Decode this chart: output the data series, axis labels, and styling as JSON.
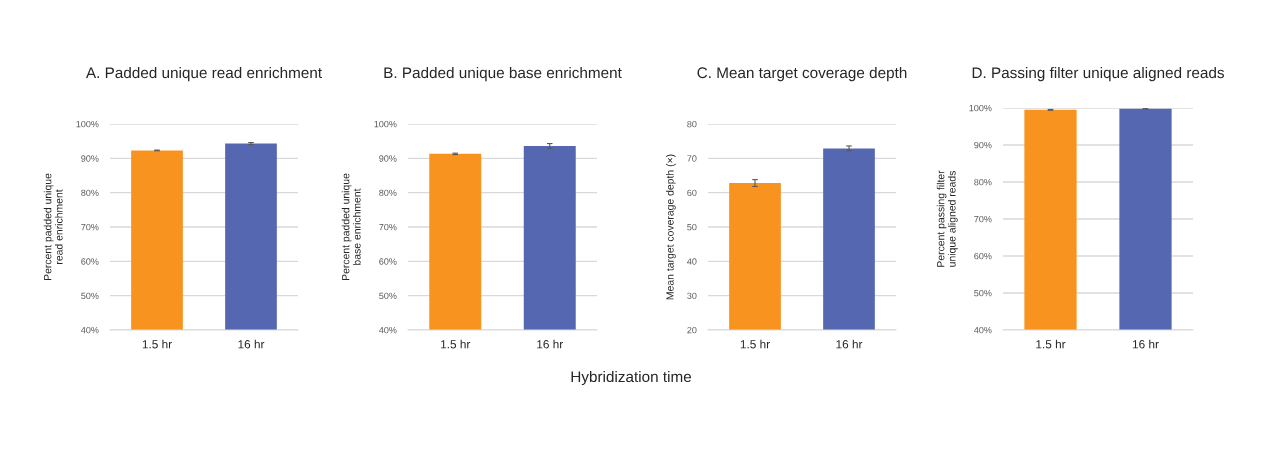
{
  "chart_data": [
    {
      "type": "bar",
      "title": "A. Padded unique read enrichment",
      "ylabel": "Percent padded unique\nread enrichment",
      "categories": [
        "1.5 hr",
        "16 hr"
      ],
      "values": [
        92.3,
        94.3
      ],
      "errors": [
        0.1,
        0.3
      ],
      "colors": [
        "#f7931e",
        "#5567b1"
      ],
      "ylim": [
        40,
        100
      ],
      "yticks": [
        {
          "value": 40,
          "label": "40%"
        },
        {
          "value": 50,
          "label": "50%"
        },
        {
          "value": 60,
          "label": "60%"
        },
        {
          "value": 70,
          "label": "70%"
        },
        {
          "value": 80,
          "label": "80%"
        },
        {
          "value": 90,
          "label": "90%"
        },
        {
          "value": 100,
          "label": "100%"
        }
      ],
      "grid": "y"
    },
    {
      "type": "bar",
      "title": "B. Padded unique base enrichment",
      "ylabel": "Percent padded unique\nbase enrichment",
      "xlabel": "Hybridization time",
      "categories": [
        "1.5 hr",
        "16 hr"
      ],
      "values": [
        91.3,
        93.6
      ],
      "errors": [
        0.2,
        0.7
      ],
      "colors": [
        "#f7931e",
        "#5567b1"
      ],
      "ylim": [
        40,
        100
      ],
      "yticks": [
        {
          "value": 40,
          "label": "40%"
        },
        {
          "value": 50,
          "label": "50%"
        },
        {
          "value": 60,
          "label": "60%"
        },
        {
          "value": 70,
          "label": "70%"
        },
        {
          "value": 80,
          "label": "80%"
        },
        {
          "value": 90,
          "label": "90%"
        },
        {
          "value": 100,
          "label": "100%"
        }
      ],
      "grid": "y"
    },
    {
      "type": "bar",
      "title": "C. Mean target coverage depth",
      "ylabel": "Mean target coverage depth (×)",
      "categories": [
        "1.5 hr",
        "16 hr"
      ],
      "values": [
        62.8,
        72.9
      ],
      "errors": [
        1.0,
        0.7
      ],
      "colors": [
        "#f7931e",
        "#5567b1"
      ],
      "ylim": [
        20,
        80
      ],
      "yticks": [
        20,
        30,
        40,
        50,
        60,
        70,
        80
      ],
      "grid": "y"
    },
    {
      "type": "bar",
      "title": "D. Passing filter unique aligned reads",
      "ylabel": "Percent passing filter\nunique aligned reads",
      "categories": [
        "1.5 hr",
        "16 hr"
      ],
      "values": [
        99.5,
        99.8
      ],
      "errors": [
        0.1,
        0.1
      ],
      "colors": [
        "#f7931e",
        "#5567b1"
      ],
      "ylim": [
        40,
        100
      ],
      "yticks": [
        {
          "value": 40,
          "label": "40%"
        },
        {
          "value": 50,
          "label": "50%"
        },
        {
          "value": 60,
          "label": "60%"
        },
        {
          "value": 70,
          "label": "70%"
        },
        {
          "value": 80,
          "label": "80%"
        },
        {
          "value": 90,
          "label": "90%"
        },
        {
          "value": 100,
          "label": "100%"
        }
      ],
      "grid": "y"
    }
  ]
}
